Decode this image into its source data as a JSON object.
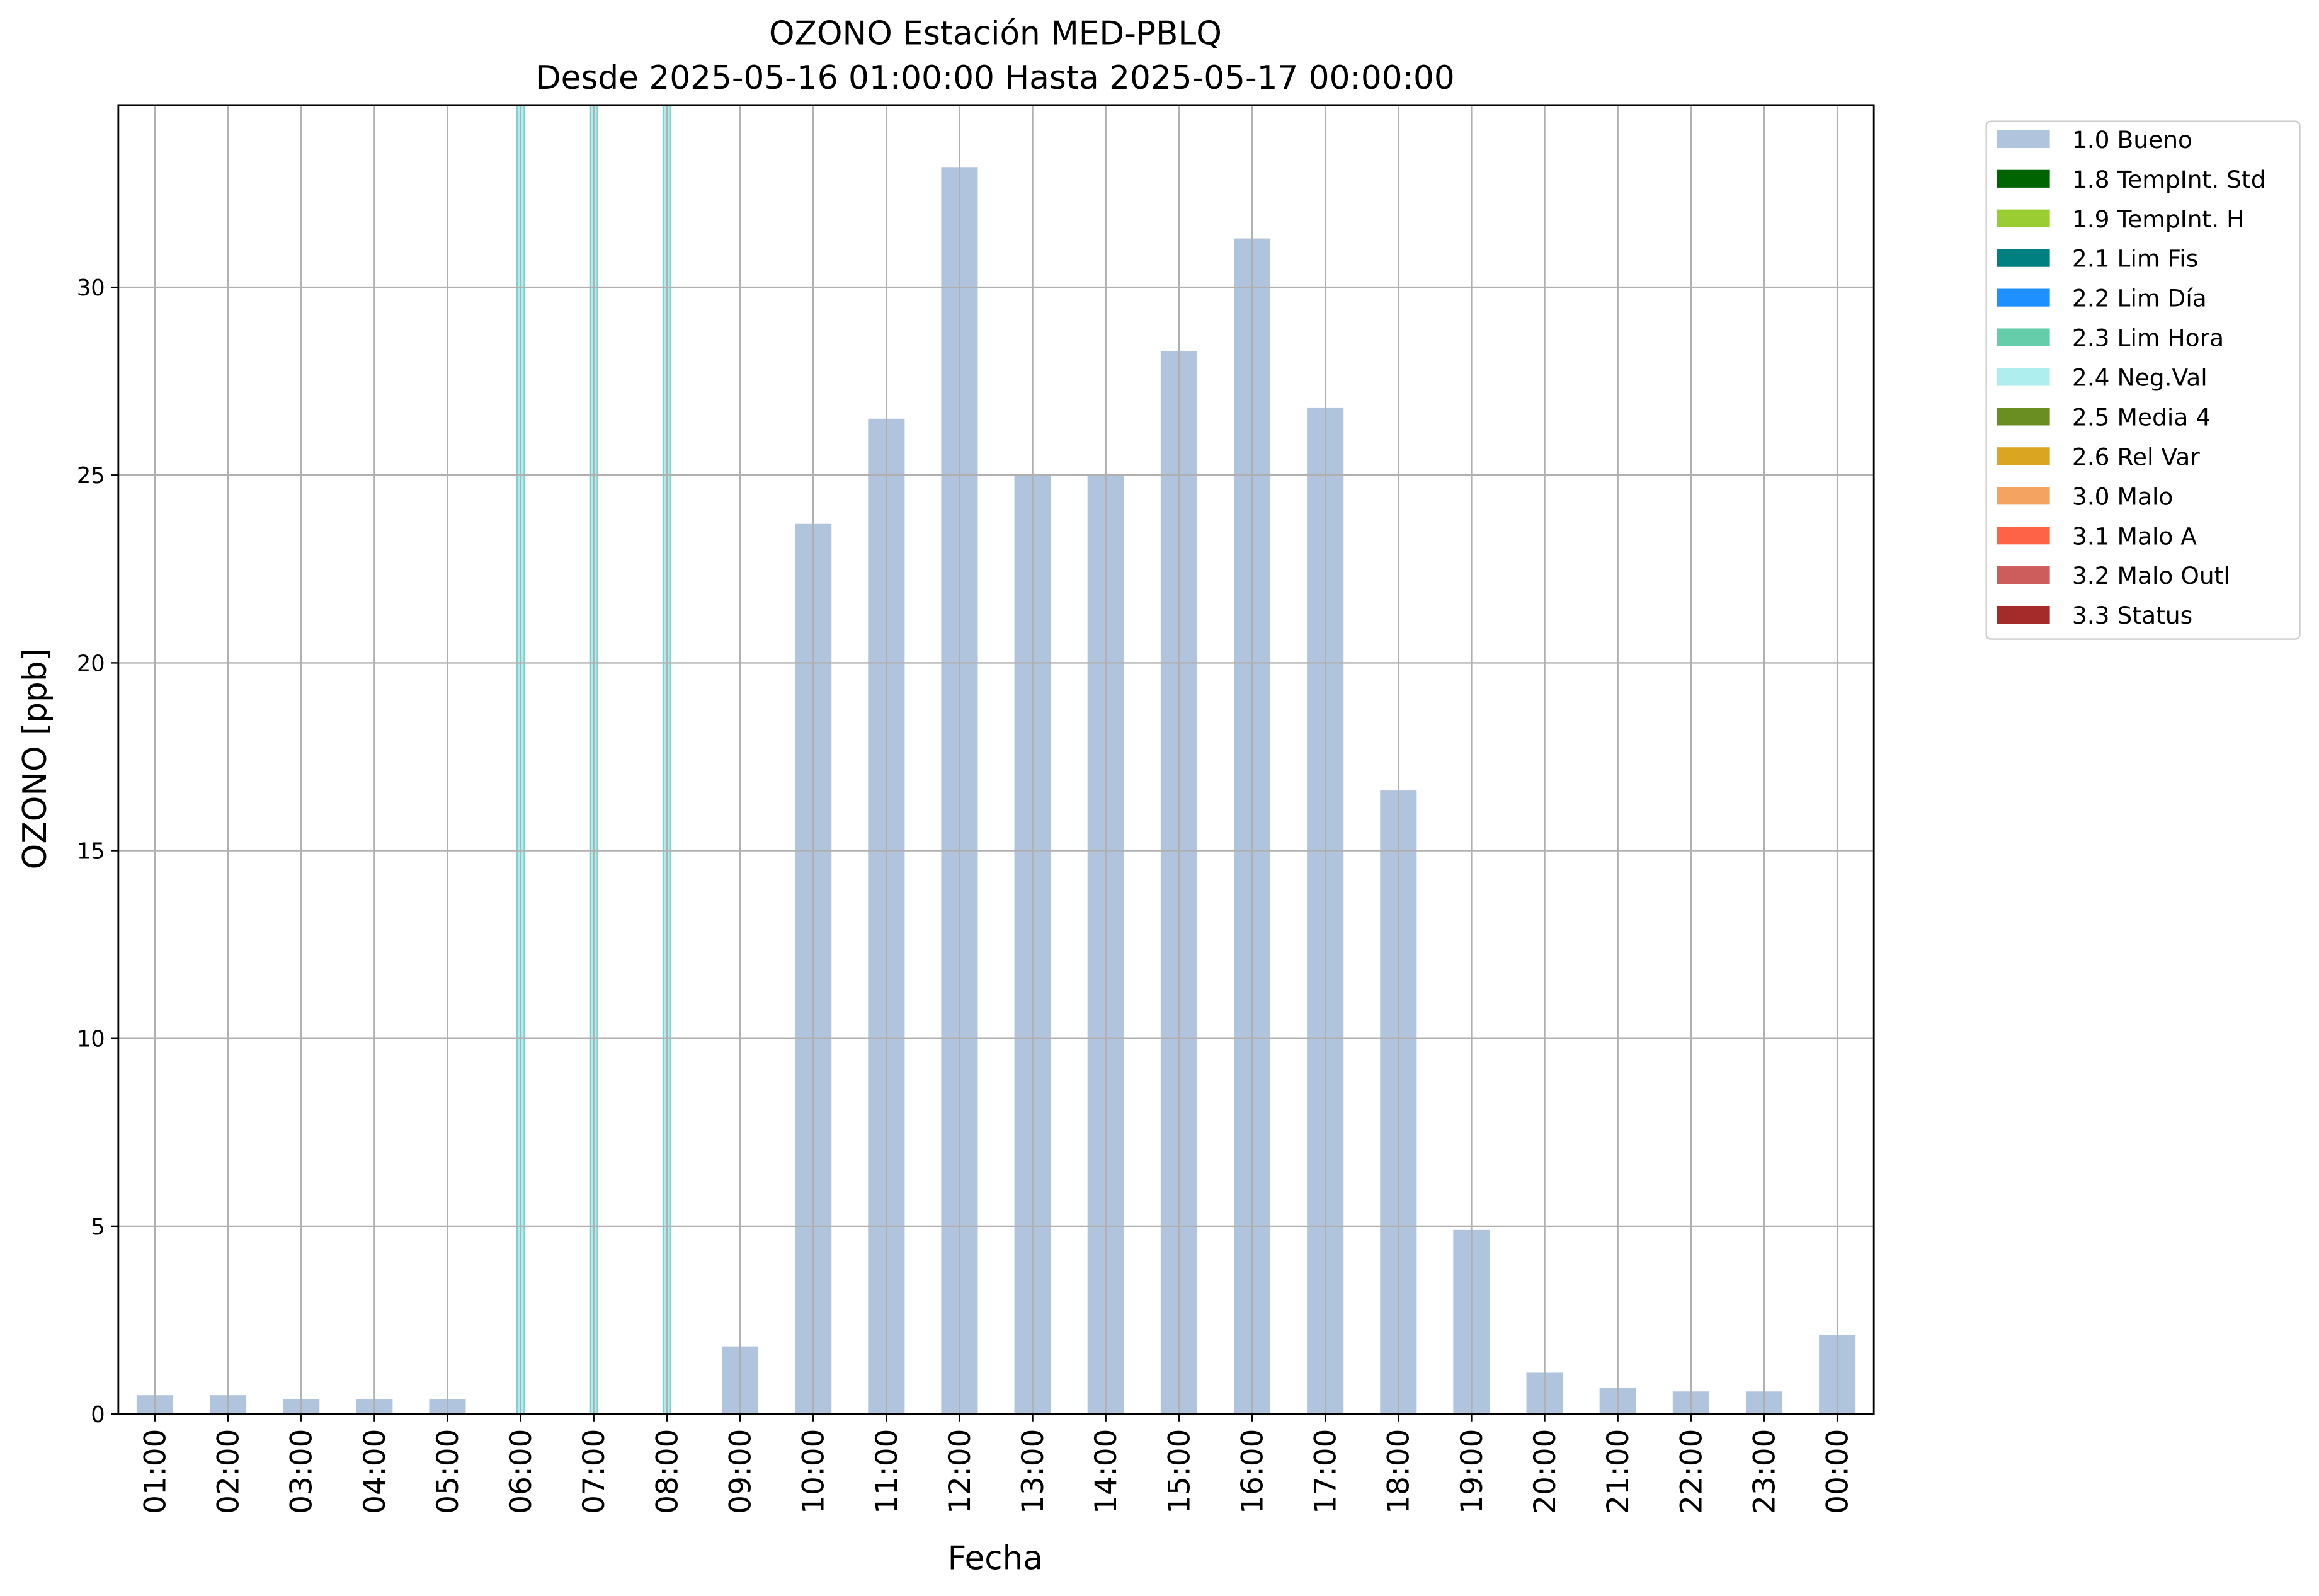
{
  "chart_data": {
    "type": "bar",
    "title": "OZONO Estación MED-PBLQ",
    "subtitle": "Desde 2025-05-16 01:00:00 Hasta 2025-05-17 00:00:00",
    "xlabel": "Fecha",
    "ylabel": "OZONO [ppb]",
    "categories": [
      "01:00",
      "02:00",
      "03:00",
      "04:00",
      "05:00",
      "06:00",
      "07:00",
      "08:00",
      "09:00",
      "10:00",
      "11:00",
      "12:00",
      "13:00",
      "14:00",
      "15:00",
      "16:00",
      "17:00",
      "18:00",
      "19:00",
      "20:00",
      "21:00",
      "22:00",
      "23:00",
      "00:00"
    ],
    "series": [
      {
        "name": "1.0 Bueno",
        "color": "#b0c4de",
        "values": [
          0.5,
          0.5,
          0.4,
          0.4,
          0.4,
          null,
          null,
          null,
          1.8,
          23.7,
          26.5,
          33.2,
          25.0,
          25.0,
          28.3,
          31.3,
          26.8,
          16.6,
          4.9,
          1.1,
          0.7,
          0.6,
          0.6,
          2.1
        ]
      },
      {
        "name": "1.8 TempInt. Std",
        "color": "#006400"
      },
      {
        "name": "1.9 TempInt. H",
        "color": "#9acd32"
      },
      {
        "name": "2.1 Lim Fis",
        "color": "#008080"
      },
      {
        "name": "2.2 Lim Día",
        "color": "#1e90ff"
      },
      {
        "name": "2.3 Lim Hora",
        "color": "#66cdaa"
      },
      {
        "name": "2.4 Neg.Val",
        "color": "#afeeee",
        "spans": [
          "06:00",
          "07:00",
          "08:00"
        ]
      },
      {
        "name": "2.5 Media 4",
        "color": "#6b8e23"
      },
      {
        "name": "2.6 Rel Var",
        "color": "#daa520"
      },
      {
        "name": "3.0 Malo",
        "color": "#f4a460"
      },
      {
        "name": "3.1 Malo A",
        "color": "#ff6347"
      },
      {
        "name": "3.2 Malo Outl",
        "color": "#cd5c5c"
      },
      {
        "name": "3.3 Status",
        "color": "#a52a2a"
      }
    ],
    "ylim": [
      0,
      34.85
    ],
    "yticks": [
      0,
      5,
      10,
      15,
      20,
      25,
      30
    ],
    "grid": true,
    "legend": "outside-upper-right"
  }
}
